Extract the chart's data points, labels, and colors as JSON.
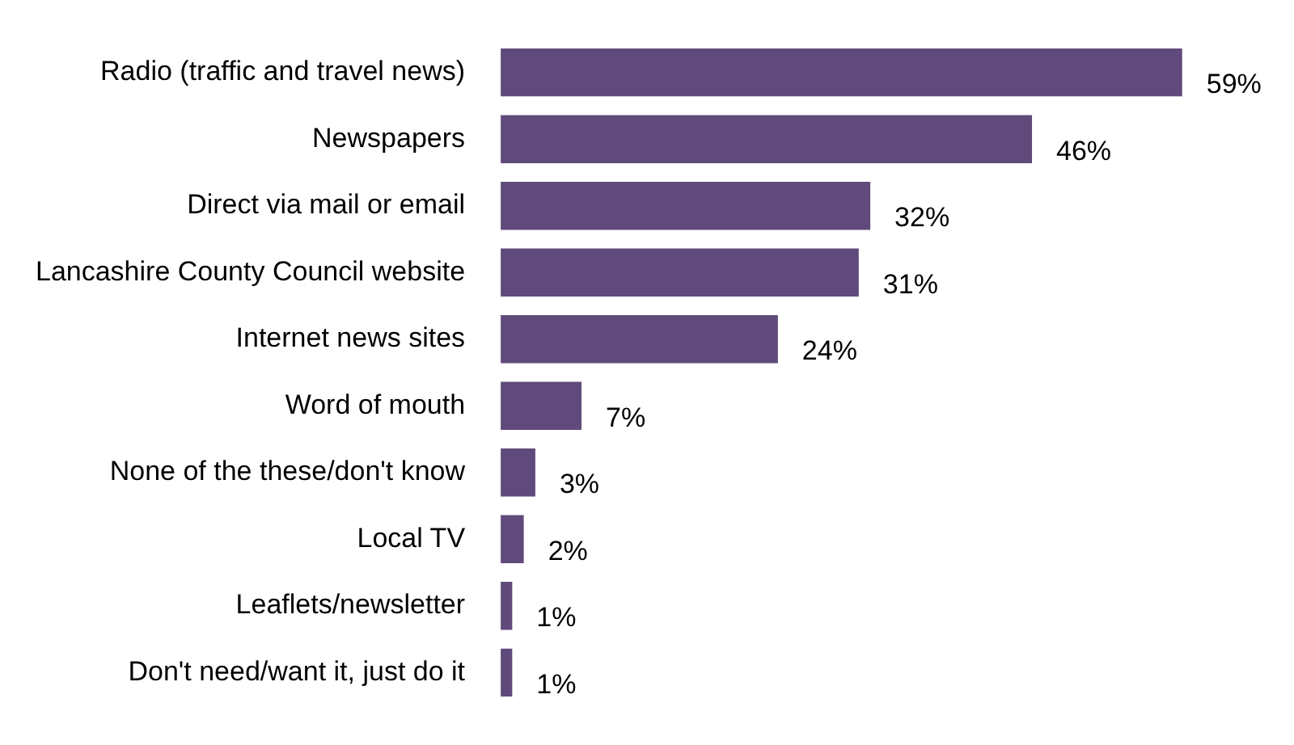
{
  "chart_data": {
    "type": "bar",
    "orientation": "horizontal",
    "categories": [
      "Radio (traffic and travel news)",
      "Newspapers",
      "Direct via mail or email",
      "Lancashire County Council website",
      "Internet news sites",
      "Word of mouth",
      "None of the these/don't know",
      "Local TV",
      "Leaflets/newsletter",
      "Don't need/want it, just do it"
    ],
    "values": [
      59,
      46,
      32,
      31,
      24,
      7,
      3,
      2,
      1,
      1
    ],
    "value_labels": [
      "59%",
      "46%",
      "32%",
      "31%",
      "24%",
      "7%",
      "3%",
      "2%",
      "1%",
      "1%"
    ],
    "color": "#604a7b"
  }
}
